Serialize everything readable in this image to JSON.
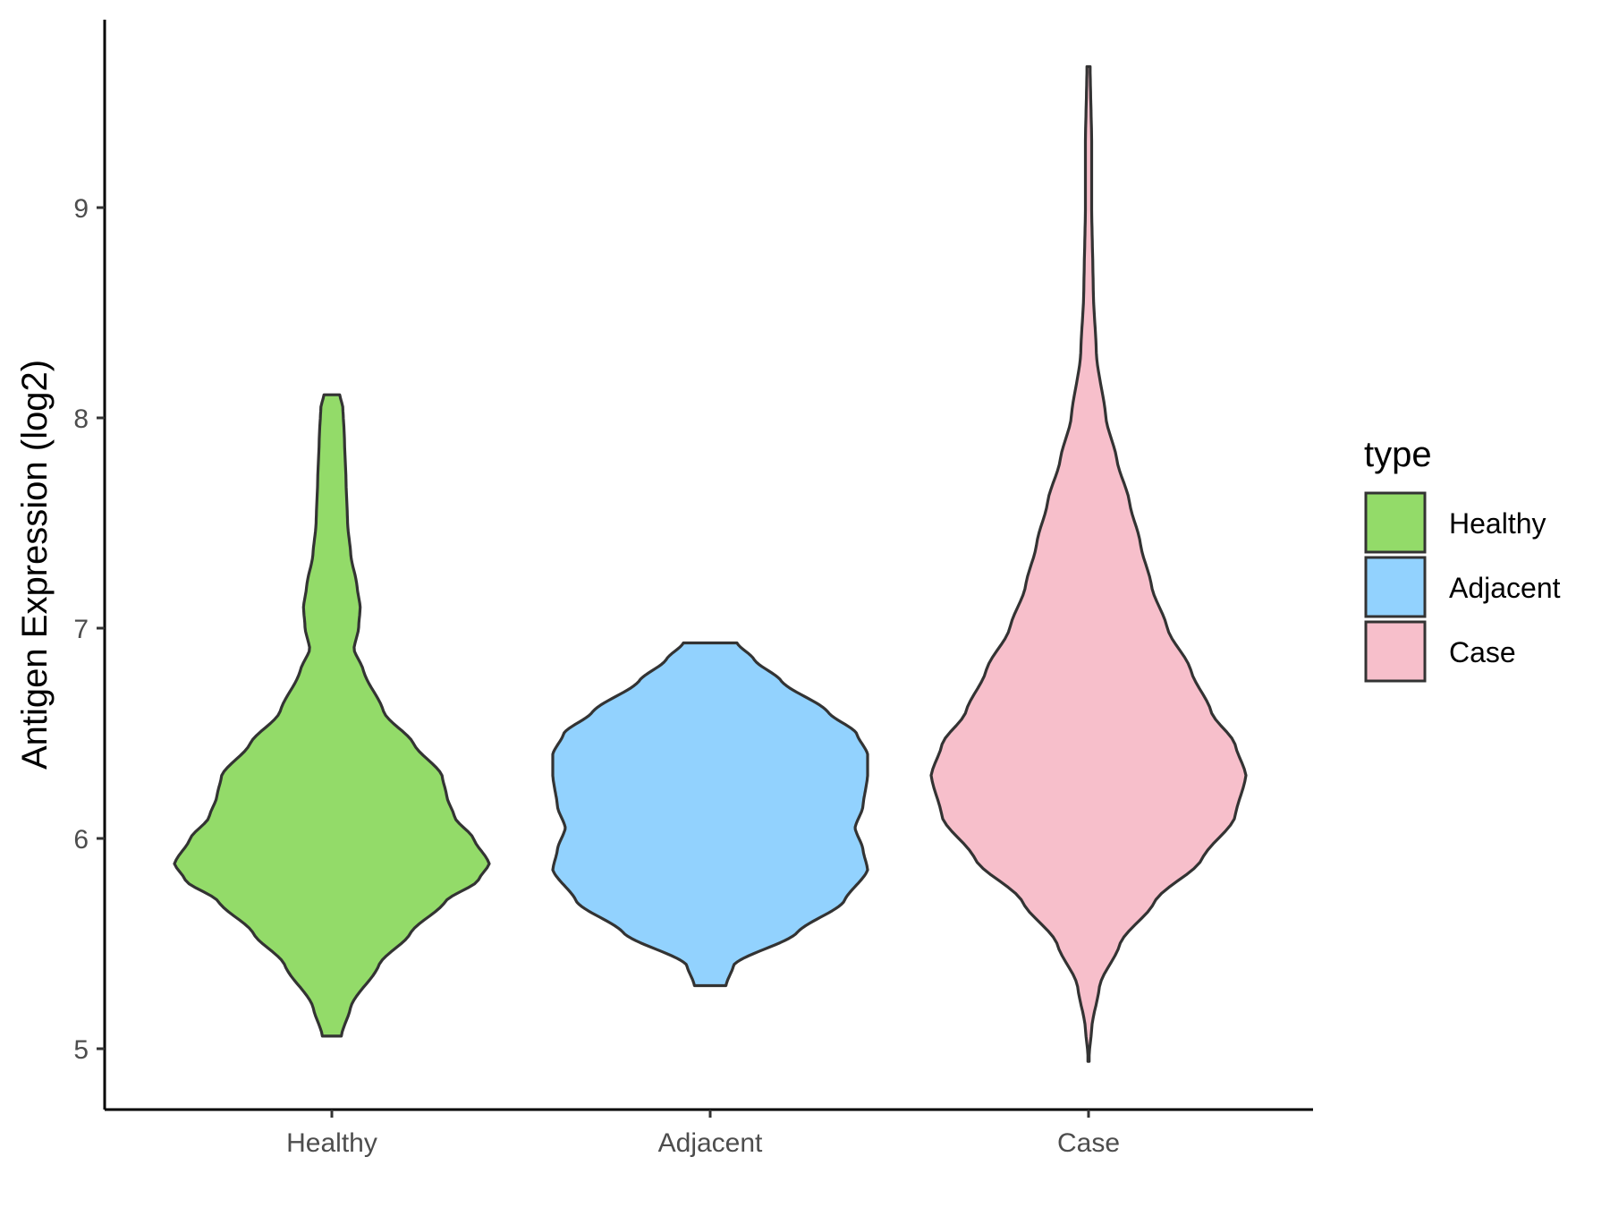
{
  "chart_data": {
    "type": "violin",
    "ylabel": "Antigen Expression (log2)",
    "xlabel": "",
    "categories": [
      "Healthy",
      "Adjacent",
      "Case"
    ],
    "ylim": [
      4.7,
      9.9
    ],
    "yticks": [
      5,
      6,
      7,
      8,
      9
    ],
    "legend": {
      "title": "type",
      "position": "right",
      "entries": [
        "Healthy",
        "Adjacent",
        "Case"
      ]
    },
    "colors": {
      "Healthy": "#93DB69",
      "Adjacent": "#92D2FE",
      "Case": "#F7BFCB"
    },
    "series": [
      {
        "name": "Healthy",
        "min": 5.06,
        "max": 8.11,
        "density_profile": [
          [
            5.06,
            0.06
          ],
          [
            5.2,
            0.12
          ],
          [
            5.4,
            0.3
          ],
          [
            5.55,
            0.5
          ],
          [
            5.7,
            0.72
          ],
          [
            5.8,
            0.93
          ],
          [
            5.88,
            1.0
          ],
          [
            6.0,
            0.9
          ],
          [
            6.1,
            0.78
          ],
          [
            6.2,
            0.73
          ],
          [
            6.3,
            0.7
          ],
          [
            6.45,
            0.52
          ],
          [
            6.6,
            0.33
          ],
          [
            6.8,
            0.2
          ],
          [
            6.9,
            0.14
          ],
          [
            7.0,
            0.17
          ],
          [
            7.1,
            0.18
          ],
          [
            7.2,
            0.16
          ],
          [
            7.35,
            0.12
          ],
          [
            7.5,
            0.1
          ],
          [
            7.7,
            0.09
          ],
          [
            7.9,
            0.08
          ],
          [
            8.05,
            0.07
          ],
          [
            8.11,
            0.05
          ]
        ]
      },
      {
        "name": "Adjacent",
        "min": 5.3,
        "max": 6.93,
        "density_profile": [
          [
            5.3,
            0.1
          ],
          [
            5.4,
            0.15
          ],
          [
            5.55,
            0.55
          ],
          [
            5.7,
            0.85
          ],
          [
            5.85,
            1.0
          ],
          [
            5.95,
            0.97
          ],
          [
            6.05,
            0.92
          ],
          [
            6.15,
            0.97
          ],
          [
            6.3,
            1.0
          ],
          [
            6.4,
            1.0
          ],
          [
            6.5,
            0.93
          ],
          [
            6.6,
            0.75
          ],
          [
            6.75,
            0.45
          ],
          [
            6.85,
            0.28
          ],
          [
            6.93,
            0.17
          ]
        ]
      },
      {
        "name": "Case",
        "min": 4.94,
        "max": 9.67,
        "density_profile": [
          [
            4.94,
            0.0
          ],
          [
            5.1,
            0.02
          ],
          [
            5.3,
            0.07
          ],
          [
            5.5,
            0.2
          ],
          [
            5.7,
            0.42
          ],
          [
            5.9,
            0.72
          ],
          [
            6.1,
            0.93
          ],
          [
            6.3,
            1.0
          ],
          [
            6.45,
            0.93
          ],
          [
            6.6,
            0.78
          ],
          [
            6.8,
            0.65
          ],
          [
            7.0,
            0.5
          ],
          [
            7.2,
            0.4
          ],
          [
            7.4,
            0.33
          ],
          [
            7.6,
            0.26
          ],
          [
            7.8,
            0.18
          ],
          [
            8.0,
            0.11
          ],
          [
            8.3,
            0.05
          ],
          [
            8.6,
            0.03
          ],
          [
            9.0,
            0.02
          ],
          [
            9.3,
            0.02
          ],
          [
            9.67,
            0.01
          ]
        ]
      }
    ]
  }
}
